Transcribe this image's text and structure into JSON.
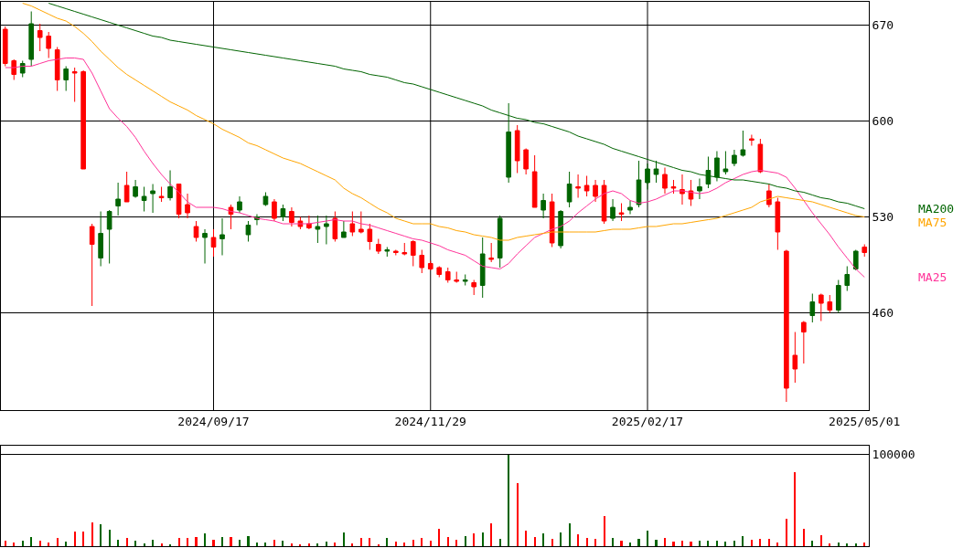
{
  "chart_data": [
    {
      "type": "candlestick",
      "categories": [
        null,
        null,
        null,
        null,
        null,
        null,
        null,
        null,
        null,
        null,
        null,
        null,
        null,
        null,
        null,
        null,
        null,
        null,
        null,
        null,
        null,
        null,
        null,
        null,
        "2024/09/17",
        null,
        null,
        null,
        null,
        null,
        null,
        null,
        null,
        null,
        null,
        null,
        null,
        null,
        null,
        null,
        null,
        null,
        null,
        null,
        null,
        null,
        null,
        null,
        null,
        "2024/11/29",
        null,
        null,
        null,
        null,
        null,
        null,
        null,
        null,
        null,
        null,
        null,
        null,
        null,
        null,
        null,
        null,
        null,
        null,
        null,
        null,
        null,
        null,
        null,
        null,
        "2025/02/17",
        null,
        null,
        null,
        null,
        null,
        null,
        null,
        null,
        null,
        null,
        null,
        null,
        null,
        null,
        null,
        null,
        null,
        null,
        null,
        null,
        null,
        null,
        null,
        null,
        "2025/05/01"
      ],
      "ohlc": [
        [
          667,
          669,
          640,
          642
        ],
        [
          644,
          645,
          630,
          634
        ],
        [
          635,
          644,
          632,
          642
        ],
        [
          645,
          680,
          640,
          671
        ],
        [
          666,
          671,
          651,
          661
        ],
        [
          662,
          665,
          646,
          653
        ],
        [
          652,
          654,
          622,
          630
        ],
        [
          630,
          640,
          622,
          638
        ],
        [
          636,
          639,
          614,
          635
        ],
        [
          636,
          637,
          565,
          565
        ],
        [
          523,
          525,
          465,
          510
        ],
        [
          500,
          534,
          494,
          518
        ],
        [
          521,
          535,
          496,
          534
        ],
        [
          538,
          555,
          531,
          543
        ],
        [
          553,
          563,
          541,
          541
        ],
        [
          545,
          557,
          544,
          552
        ],
        [
          542,
          552,
          534,
          545
        ],
        [
          547,
          554,
          533,
          549
        ],
        [
          545,
          552,
          541,
          544
        ],
        [
          544,
          564,
          542,
          552
        ],
        [
          554,
          554,
          529,
          532
        ],
        [
          539,
          547,
          529,
          533
        ],
        [
          523,
          527,
          512,
          515
        ],
        [
          515,
          521,
          496,
          518
        ],
        [
          515,
          521,
          501,
          508
        ],
        [
          514,
          529,
          502,
          517
        ],
        [
          537,
          539,
          521,
          532
        ],
        [
          535,
          545,
          533,
          541
        ],
        [
          517,
          527,
          512,
          524
        ],
        [
          528,
          532,
          524,
          530
        ],
        [
          539,
          548,
          538,
          545
        ],
        [
          541,
          543,
          527,
          529
        ],
        [
          530,
          539,
          527,
          536
        ],
        [
          534,
          537,
          523,
          526
        ],
        [
          527,
          530,
          521,
          523
        ],
        [
          525,
          531,
          521,
          522
        ],
        [
          521,
          531,
          511,
          523
        ],
        [
          523,
          531,
          510,
          525
        ],
        [
          529,
          534,
          512,
          514
        ],
        [
          515,
          527,
          515,
          519
        ],
        [
          525,
          534,
          516,
          519
        ],
        [
          521,
          534,
          518,
          519
        ],
        [
          521,
          525,
          506,
          512
        ],
        [
          510,
          514,
          503,
          505
        ],
        [
          505,
          508,
          501,
          506
        ],
        [
          505,
          506,
          502,
          504
        ],
        [
          504,
          511,
          502,
          503
        ],
        [
          512,
          513,
          494,
          502
        ],
        [
          502,
          506,
          489,
          493
        ],
        [
          496,
          498,
          491,
          492
        ],
        [
          493,
          494,
          486,
          488
        ],
        [
          490,
          493,
          482,
          484
        ],
        [
          484,
          490,
          482,
          483
        ],
        [
          483,
          488,
          480,
          484
        ],
        [
          482,
          484,
          473,
          479
        ],
        [
          480,
          515,
          471,
          503
        ],
        [
          500,
          511,
          497,
          499
        ],
        [
          500,
          531,
          493,
          529
        ],
        [
          559,
          613,
          555,
          592
        ],
        [
          593,
          597,
          562,
          571
        ],
        [
          579,
          580,
          561,
          565
        ],
        [
          563,
          575,
          537,
          537
        ],
        [
          535,
          547,
          529,
          542
        ],
        [
          541,
          547,
          508,
          511
        ],
        [
          509,
          535,
          507,
          534
        ],
        [
          541,
          563,
          537,
          554
        ],
        [
          552,
          561,
          544,
          551
        ],
        [
          553,
          560,
          545,
          549
        ],
        [
          553,
          557,
          541,
          545
        ],
        [
          553,
          557,
          525,
          527
        ],
        [
          529,
          543,
          527,
          537
        ],
        [
          533,
          540,
          527,
          532
        ],
        [
          535,
          542,
          532,
          537
        ],
        [
          539,
          571,
          537,
          557
        ],
        [
          555,
          569,
          550,
          565
        ],
        [
          561,
          571,
          555,
          565
        ],
        [
          561,
          566,
          547,
          551
        ],
        [
          552,
          557,
          547,
          551
        ],
        [
          550,
          561,
          539,
          547
        ],
        [
          549,
          557,
          538,
          543
        ],
        [
          549,
          558,
          543,
          552
        ],
        [
          554,
          574,
          551,
          564
        ],
        [
          559,
          578,
          556,
          573
        ],
        [
          563,
          578,
          561,
          565
        ],
        [
          569,
          579,
          567,
          575
        ],
        [
          575,
          593,
          574,
          579
        ],
        [
          587,
          590,
          582,
          586
        ],
        [
          583,
          587,
          562,
          563
        ],
        [
          549,
          554,
          537,
          539
        ],
        [
          541,
          544,
          506,
          519
        ],
        [
          505,
          506,
          395,
          405
        ],
        [
          429,
          446,
          409,
          419
        ],
        [
          453,
          454,
          423,
          446
        ],
        [
          458,
          474,
          453,
          468
        ],
        [
          473,
          474,
          454,
          467
        ],
        [
          468,
          473,
          460,
          462
        ],
        [
          462,
          484,
          460,
          480
        ],
        [
          480,
          494,
          476,
          488
        ],
        [
          492,
          506,
          491,
          505
        ],
        [
          508,
          510,
          501,
          504
        ]
      ],
      "colors": [
        "#ff0000",
        "#ff0000",
        "#006400",
        "#006400",
        "#ff0000",
        "#ff0000",
        "#ff0000",
        "#006400",
        "#ff0000",
        "#ff0000",
        "#ff0000",
        "#006400",
        "#006400",
        "#006400",
        "#ff0000",
        "#006400",
        "#006400",
        "#006400",
        "#ff0000",
        "#006400",
        "#ff0000",
        "#ff0000",
        "#ff0000",
        "#006400",
        "#ff0000",
        "#006400",
        "#ff0000",
        "#006400",
        "#006400",
        "#006400",
        "#006400",
        "#ff0000",
        "#006400",
        "#ff0000",
        "#ff0000",
        "#ff0000",
        "#006400",
        "#006400",
        "#ff0000",
        "#006400",
        "#ff0000",
        "#ff0000",
        "#ff0000",
        "#ff0000",
        "#006400",
        "#ff0000",
        "#ff0000",
        "#ff0000",
        "#ff0000",
        "#ff0000",
        "#ff0000",
        "#ff0000",
        "#ff0000",
        "#006400",
        "#ff0000",
        "#006400",
        "#ff0000",
        "#006400",
        "#006400",
        "#ff0000",
        "#ff0000",
        "#ff0000",
        "#006400",
        "#ff0000",
        "#006400",
        "#006400",
        "#ff0000",
        "#ff0000",
        "#ff0000",
        "#ff0000",
        "#006400",
        "#ff0000",
        "#006400",
        "#006400",
        "#006400",
        "#006400",
        "#ff0000",
        "#ff0000",
        "#ff0000",
        "#ff0000",
        "#006400",
        "#006400",
        "#006400",
        "#006400",
        "#006400",
        "#006400",
        "#ff0000",
        "#ff0000",
        "#ff0000",
        "#ff0000",
        "#ff0000",
        "#ff0000",
        "#ff0000",
        "#006400",
        "#ff0000",
        "#ff0000",
        "#006400",
        "#006400",
        "#006400",
        "#ff0000"
      ],
      "series": [
        {
          "name": "MA25",
          "type": "line",
          "color": "#ff3399",
          "values": [
            639,
            639,
            640,
            640,
            642,
            644,
            645,
            646,
            646,
            645,
            635,
            622,
            609,
            602,
            596,
            588,
            578,
            569,
            561,
            554,
            548,
            541,
            537,
            537,
            537,
            536,
            534,
            533,
            531,
            529,
            528,
            527,
            525,
            525,
            525,
            525,
            526,
            527,
            528,
            527,
            527,
            525,
            524,
            522,
            520,
            518,
            516,
            514,
            513,
            511,
            509,
            506,
            504,
            502,
            498,
            494,
            493,
            492,
            496,
            503,
            509,
            515,
            518,
            521,
            523,
            527,
            533,
            538,
            543,
            547,
            549,
            547,
            542,
            540,
            541,
            543,
            546,
            549,
            549,
            548,
            547,
            548,
            551,
            555,
            558,
            561,
            563,
            564,
            563,
            562,
            559,
            551,
            542,
            533,
            525,
            517,
            508,
            500,
            492,
            486
          ]
        },
        {
          "name": "MA75",
          "type": "line",
          "color": "#ffa500",
          "values": [
            null,
            null,
            686,
            684,
            681,
            678,
            675,
            673,
            669,
            664,
            658,
            651,
            645,
            639,
            634,
            630,
            626,
            622,
            618,
            614,
            611,
            608,
            604,
            601,
            598,
            594,
            591,
            588,
            584,
            582,
            579,
            576,
            573,
            571,
            569,
            566,
            563,
            560,
            557,
            551,
            547,
            544,
            540,
            536,
            533,
            529,
            527,
            525,
            525,
            525,
            523,
            522,
            520,
            519,
            517,
            516,
            515,
            513,
            513,
            515,
            516,
            517,
            518,
            519,
            519,
            519,
            519,
            519,
            519,
            520,
            521,
            521,
            521,
            522,
            523,
            523,
            524,
            525,
            525,
            526,
            527,
            528,
            529,
            531,
            533,
            535,
            537,
            541,
            543,
            545,
            544,
            543,
            542,
            541,
            539,
            537,
            535,
            533,
            531,
            530
          ]
        },
        {
          "name": "MA200",
          "type": "line",
          "color": "#006400",
          "values": [
            null,
            null,
            null,
            null,
            null,
            686,
            684,
            682,
            680,
            678,
            676,
            674,
            672,
            670,
            668,
            666,
            664,
            662,
            661,
            659,
            658,
            657,
            656,
            655,
            654,
            653,
            652,
            651,
            650,
            649,
            648,
            647,
            646,
            645,
            644,
            643,
            642,
            641,
            640,
            638,
            637,
            636,
            634,
            633,
            632,
            630,
            628,
            627,
            625,
            623,
            621,
            619,
            617,
            615,
            613,
            611,
            608,
            606,
            604,
            602,
            601,
            599,
            598,
            596,
            594,
            592,
            589,
            587,
            585,
            583,
            580,
            578,
            576,
            574,
            572,
            570,
            568,
            566,
            564,
            563,
            561,
            560,
            559,
            558,
            557,
            557,
            556,
            555,
            554,
            552,
            551,
            549,
            548,
            546,
            544,
            543,
            541,
            540,
            538,
            536
          ]
        }
      ],
      "ylim": [
        389,
        687
      ],
      "yticks": [
        460,
        530,
        600,
        670
      ],
      "grid": true,
      "legend": false
    },
    {
      "type": "bar",
      "categories": [
        null,
        null,
        null,
        null,
        null,
        null,
        null,
        null,
        null,
        null,
        null,
        null,
        null,
        null,
        null,
        null,
        null,
        null,
        null,
        null,
        null,
        null,
        null,
        null,
        "2024/09/17",
        null,
        null,
        null,
        null,
        null,
        null,
        null,
        null,
        null,
        null,
        null,
        null,
        null,
        null,
        null,
        null,
        null,
        null,
        null,
        null,
        null,
        null,
        null,
        null,
        "2024/11/29",
        null,
        null,
        null,
        null,
        null,
        null,
        null,
        null,
        null,
        null,
        null,
        null,
        null,
        null,
        null,
        null,
        null,
        null,
        null,
        null,
        null,
        null,
        null,
        null,
        "2025/02/17",
        null,
        null,
        null,
        null,
        null,
        null,
        null,
        null,
        null,
        null,
        null,
        null,
        null,
        null,
        null,
        null,
        null,
        null,
        null,
        null,
        null,
        null,
        null,
        null,
        "2025/05/01"
      ],
      "values": [
        6000,
        4000,
        6000,
        10000,
        6000,
        4000,
        9000,
        5000,
        16000,
        16000,
        26000,
        24000,
        18000,
        7000,
        9000,
        6000,
        3000,
        7000,
        3000,
        2000,
        9000,
        9000,
        10000,
        14000,
        7000,
        10000,
        10000,
        7000,
        11000,
        4000,
        4000,
        7000,
        6000,
        3000,
        2000,
        3000,
        3000,
        5000,
        4000,
        15000,
        3000,
        9000,
        9000,
        2000,
        9000,
        5000,
        4000,
        7000,
        9000,
        6000,
        19000,
        10000,
        7000,
        11000,
        14000,
        15000,
        25000,
        8000,
        100000,
        69000,
        17000,
        10000,
        14000,
        8000,
        15000,
        25000,
        13000,
        9000,
        8000,
        33000,
        9000,
        6000,
        4000,
        8000,
        17000,
        7000,
        9000,
        5000,
        6000,
        5000,
        6000,
        6000,
        6000,
        5000,
        6000,
        11000,
        7000,
        8000,
        8000,
        4000,
        30000,
        81000,
        19000,
        6000,
        12000,
        3000,
        4000,
        3000,
        3000,
        4000
      ],
      "colors": [
        "#ff0000",
        "#ff0000",
        "#006400",
        "#006400",
        "#ff0000",
        "#ff0000",
        "#ff0000",
        "#006400",
        "#ff0000",
        "#ff0000",
        "#ff0000",
        "#006400",
        "#006400",
        "#006400",
        "#ff0000",
        "#006400",
        "#006400",
        "#006400",
        "#ff0000",
        "#006400",
        "#ff0000",
        "#ff0000",
        "#ff0000",
        "#006400",
        "#ff0000",
        "#006400",
        "#ff0000",
        "#006400",
        "#006400",
        "#006400",
        "#006400",
        "#ff0000",
        "#006400",
        "#ff0000",
        "#ff0000",
        "#ff0000",
        "#006400",
        "#006400",
        "#ff0000",
        "#006400",
        "#ff0000",
        "#ff0000",
        "#ff0000",
        "#ff0000",
        "#006400",
        "#ff0000",
        "#ff0000",
        "#ff0000",
        "#ff0000",
        "#ff0000",
        "#ff0000",
        "#ff0000",
        "#ff0000",
        "#006400",
        "#ff0000",
        "#006400",
        "#ff0000",
        "#006400",
        "#006400",
        "#ff0000",
        "#ff0000",
        "#ff0000",
        "#006400",
        "#ff0000",
        "#006400",
        "#006400",
        "#ff0000",
        "#ff0000",
        "#ff0000",
        "#ff0000",
        "#006400",
        "#ff0000",
        "#006400",
        "#006400",
        "#006400",
        "#006400",
        "#ff0000",
        "#ff0000",
        "#ff0000",
        "#ff0000",
        "#006400",
        "#006400",
        "#006400",
        "#006400",
        "#006400",
        "#006400",
        "#ff0000",
        "#ff0000",
        "#ff0000",
        "#ff0000",
        "#ff0000",
        "#ff0000",
        "#ff0000",
        "#006400",
        "#ff0000",
        "#ff0000",
        "#006400",
        "#006400",
        "#006400",
        "#ff0000"
      ],
      "tick_labels": "y",
      "ylim": [
        0,
        110000
      ],
      "yticks": [
        {
          "value": 0,
          "label": null
        },
        100000
      ],
      "grid": "y"
    }
  ]
}
